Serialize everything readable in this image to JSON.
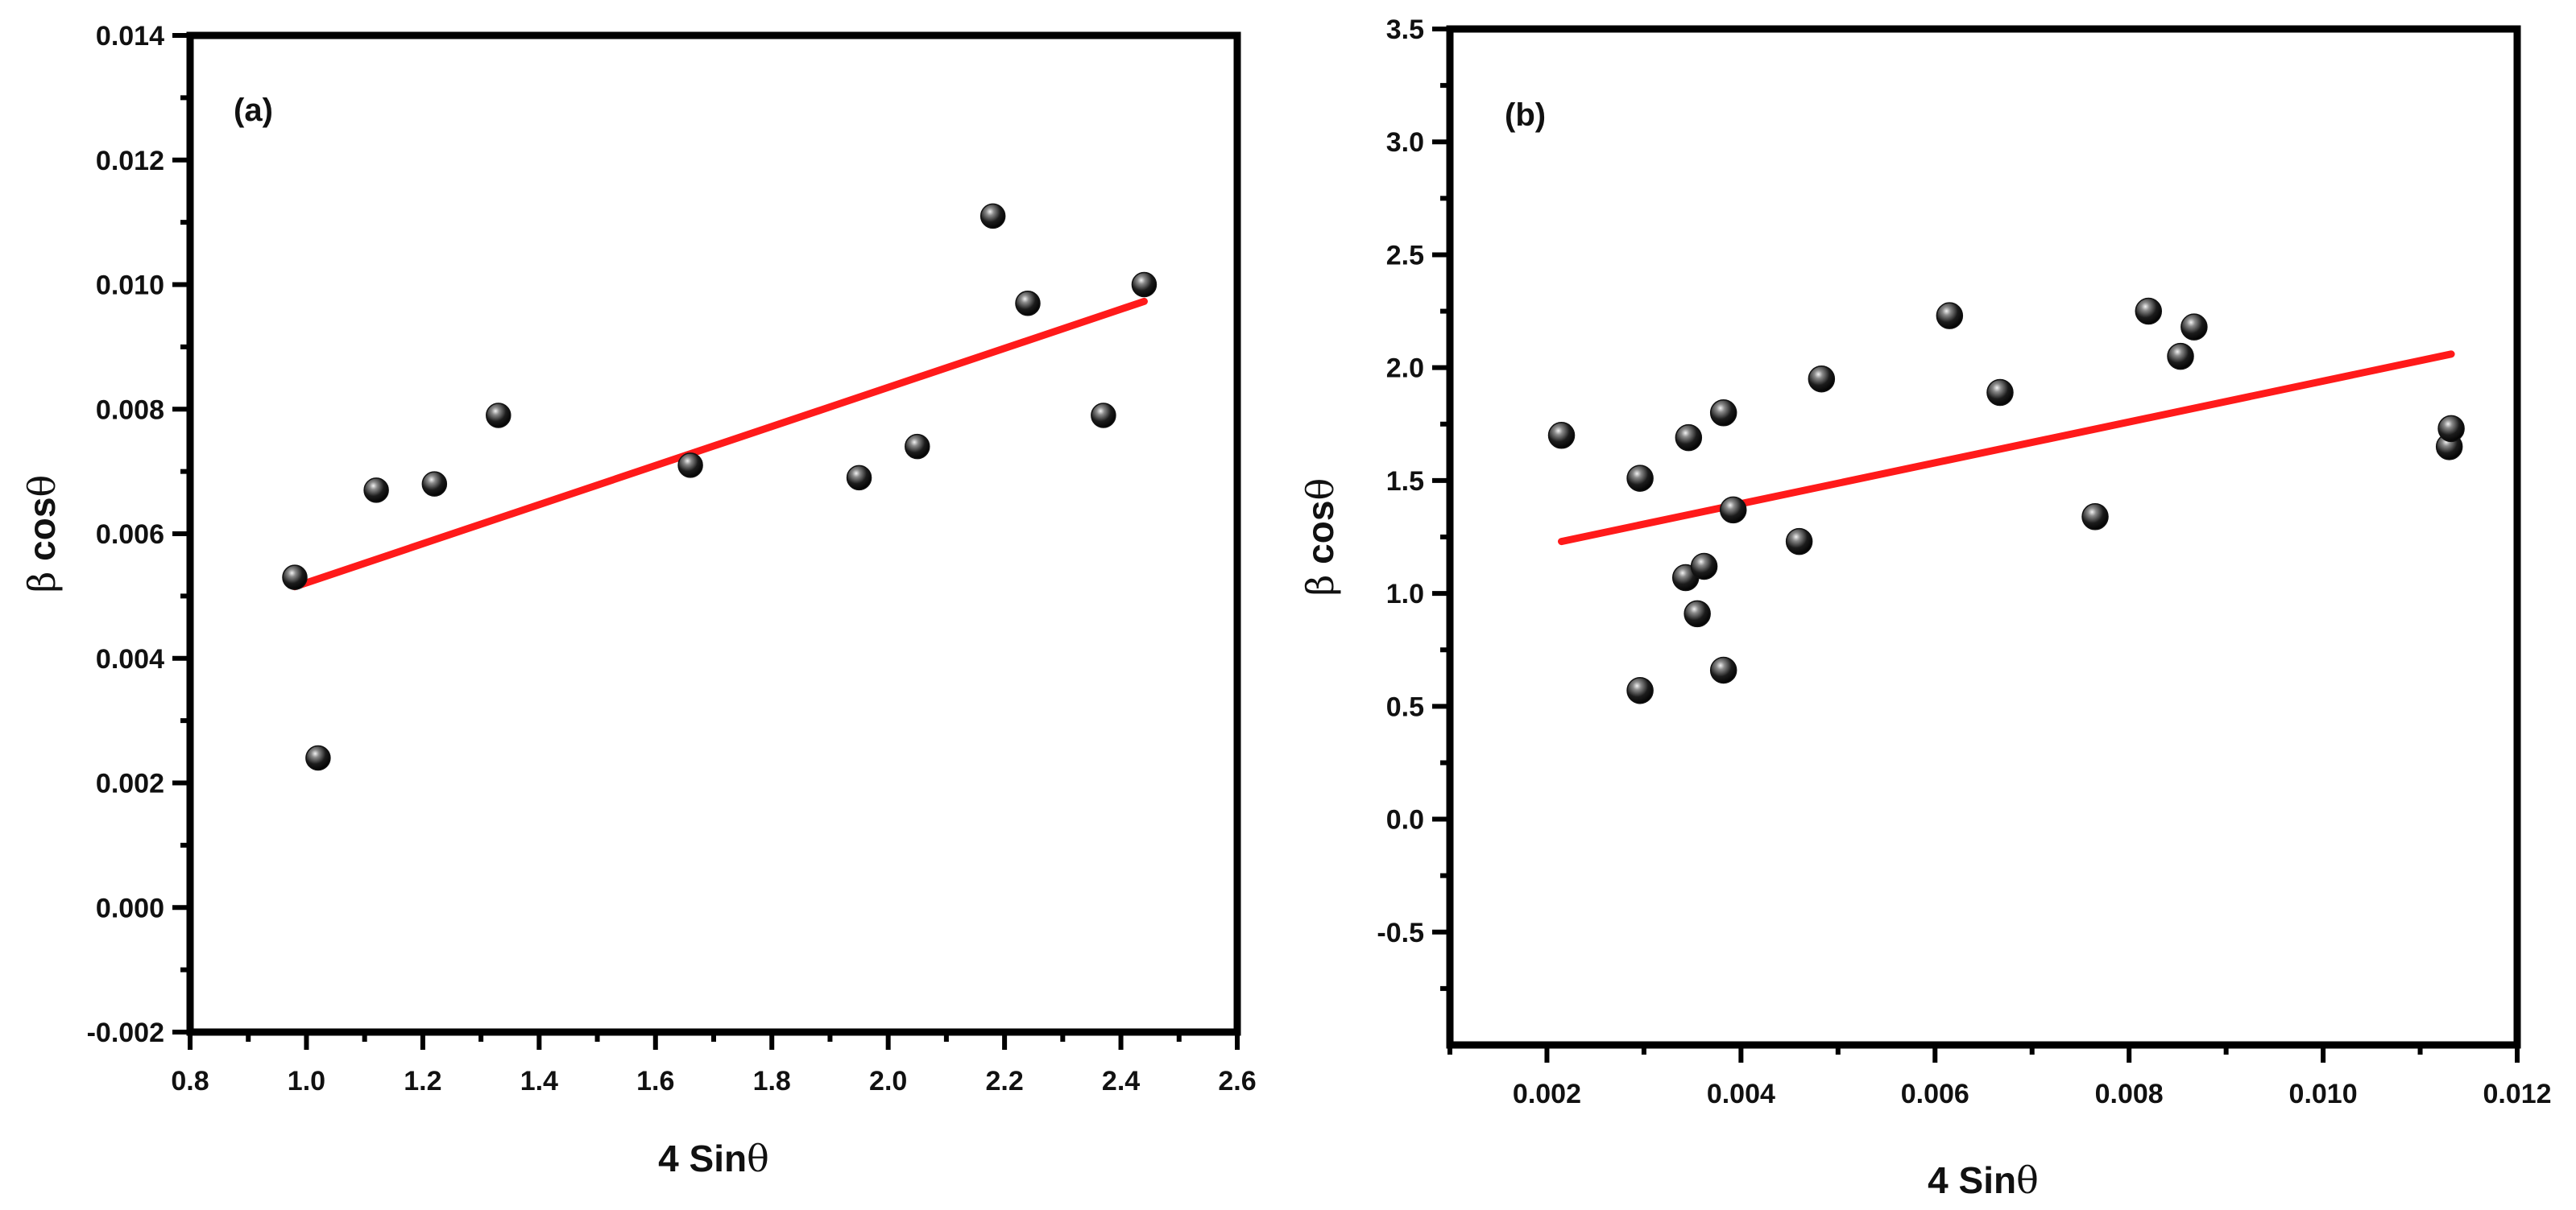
{
  "chart_data": [
    {
      "type": "scatter",
      "panel_label": "(a)",
      "xlabel": "4 Sinθ",
      "ylabel": "β cosθ",
      "xlim": [
        0.8,
        2.6
      ],
      "ylim": [
        -0.002,
        0.014
      ],
      "xticks": [
        0.8,
        1.0,
        1.2,
        1.4,
        1.6,
        1.8,
        2.0,
        2.2,
        2.4,
        2.6
      ],
      "xtick_labels": [
        "0.8",
        "1.0",
        "1.2",
        "1.4",
        "1.6",
        "1.8",
        "2.0",
        "2.2",
        "2.4",
        "2.6"
      ],
      "yticks": [
        -0.002,
        0.0,
        0.002,
        0.004,
        0.006,
        0.008,
        0.01,
        0.012,
        0.014
      ],
      "ytick_labels": [
        "-0.002",
        "0.000",
        "0.002",
        "0.004",
        "0.006",
        "0.008",
        "0.010",
        "0.012",
        "0.014"
      ],
      "points": [
        {
          "x": 0.98,
          "y": 0.0053
        },
        {
          "x": 1.02,
          "y": 0.0024
        },
        {
          "x": 1.12,
          "y": 0.0067
        },
        {
          "x": 1.22,
          "y": 0.0068
        },
        {
          "x": 1.33,
          "y": 0.0079
        },
        {
          "x": 1.66,
          "y": 0.0071
        },
        {
          "x": 1.95,
          "y": 0.0069
        },
        {
          "x": 2.05,
          "y": 0.0074
        },
        {
          "x": 2.18,
          "y": 0.0111
        },
        {
          "x": 2.24,
          "y": 0.0097
        },
        {
          "x": 2.37,
          "y": 0.0079
        },
        {
          "x": 2.44,
          "y": 0.01
        }
      ],
      "fit_line": {
        "x": [
          0.98,
          2.44
        ],
        "y": [
          0.00515,
          0.00973
        ]
      },
      "marker_color": "#111111",
      "line_color": "#ff1a1a"
    },
    {
      "type": "scatter",
      "panel_label": "(b)",
      "xlabel": "4 Sinθ",
      "ylabel": "β cosθ",
      "xlim": [
        0.001,
        0.012
      ],
      "ylim": [
        -1.0,
        3.5
      ],
      "xticks": [
        0.002,
        0.004,
        0.006,
        0.008,
        0.01,
        0.012
      ],
      "xtick_labels": [
        "0.002",
        "0.004",
        "0.006",
        "0.008",
        "0.010",
        "0.012"
      ],
      "yticks": [
        -0.5,
        0.0,
        0.5,
        1.0,
        1.5,
        2.0,
        2.5,
        3.0,
        3.5
      ],
      "ytick_labels": [
        "-0.5",
        "0.0",
        "0.5",
        "1.0",
        "1.5",
        "2.0",
        "2.5",
        "3.0",
        "3.5"
      ],
      "points": [
        {
          "x": 0.00215,
          "y": 1.7
        },
        {
          "x": 0.00296,
          "y": 1.51
        },
        {
          "x": 0.00296,
          "y": 0.57
        },
        {
          "x": 0.00343,
          "y": 1.07
        },
        {
          "x": 0.00346,
          "y": 1.69
        },
        {
          "x": 0.00355,
          "y": 0.91
        },
        {
          "x": 0.00362,
          "y": 1.12
        },
        {
          "x": 0.00382,
          "y": 1.8
        },
        {
          "x": 0.00382,
          "y": 0.66
        },
        {
          "x": 0.00392,
          "y": 1.37
        },
        {
          "x": 0.0046,
          "y": 1.23
        },
        {
          "x": 0.00483,
          "y": 1.95
        },
        {
          "x": 0.00615,
          "y": 2.23
        },
        {
          "x": 0.00667,
          "y": 1.89
        },
        {
          "x": 0.00765,
          "y": 1.34
        },
        {
          "x": 0.0082,
          "y": 2.25
        },
        {
          "x": 0.00853,
          "y": 2.05
        },
        {
          "x": 0.00867,
          "y": 2.18
        },
        {
          "x": 0.0113,
          "y": 1.65
        },
        {
          "x": 0.01132,
          "y": 1.73
        }
      ],
      "fit_line": {
        "x": [
          0.00215,
          0.01132
        ],
        "y": [
          1.23,
          2.06
        ]
      },
      "marker_color": "#111111",
      "line_color": "#ff1a1a"
    }
  ]
}
